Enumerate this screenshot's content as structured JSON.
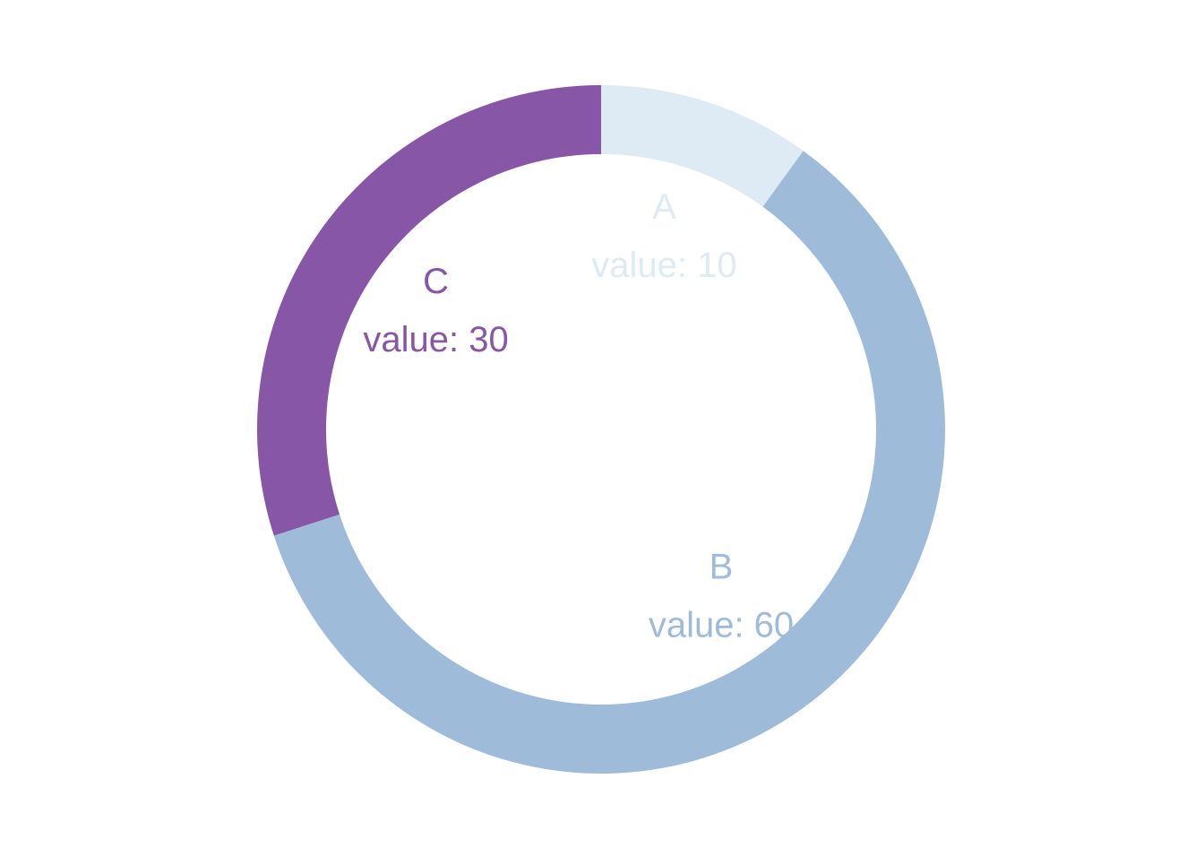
{
  "chart_data": {
    "type": "pie",
    "subtype": "donut",
    "title": "",
    "categories": [
      "A",
      "B",
      "C"
    ],
    "values": [
      10,
      60,
      30
    ],
    "value_labels": [
      "value: 10",
      "value: 60",
      "value: 30"
    ],
    "colors": [
      "#DEEBF4",
      "#9EBBD9",
      "#8856A7"
    ],
    "legend": "none",
    "grid": false,
    "start_angle": "12 o'clock",
    "direction": "clockwise"
  }
}
